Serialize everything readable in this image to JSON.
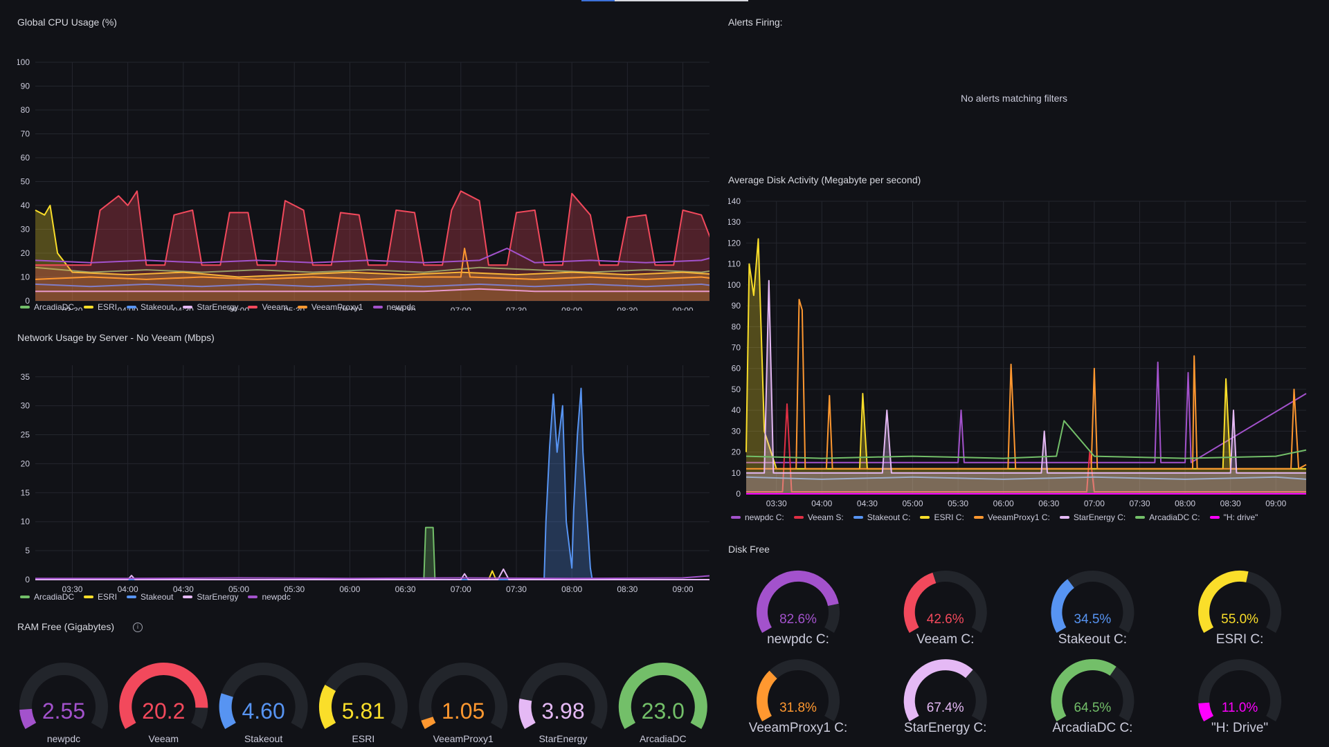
{
  "colors": {
    "green": "#73bf69",
    "yellow": "#fade2a",
    "blue": "#5794f2",
    "pink": "#e5b9f5",
    "red": "#f2495c",
    "orange": "#ff9830",
    "purple": "#a352cc",
    "darkred": "#e02f44",
    "magenta": "#ff00ff",
    "grid": "#24262e",
    "track": "#22252b"
  },
  "cpu_panel": {
    "title": "Global CPU Usage (%)",
    "legend": [
      "ArcadiaDC",
      "ESRI",
      "Stakeout",
      "StarEnergy",
      "Veeam",
      "VeeamProxy1",
      "newpdc"
    ]
  },
  "alerts_panel": {
    "title": "Alerts Firing:",
    "empty_text": "No alerts matching filters"
  },
  "network_panel": {
    "title": "Network Usage by Server - No Veeam (Mbps)",
    "legend": [
      "ArcadiaDC",
      "ESRI",
      "Stakeout",
      "StarEnergy",
      "newpdc"
    ]
  },
  "disk_activity_panel": {
    "title": "Average Disk Activity (Megabyte per second)",
    "legend": [
      "newpdc C:",
      "Veeam S:",
      "Stakeout C:",
      "ESRI C:",
      "VeeamProxy1 C:",
      "StarEnergy C:",
      "ArcadiaDC C:",
      "\"H: drive\""
    ]
  },
  "ram_panel": {
    "title": "RAM Free (Gigabytes)",
    "info_icon": "info-circle-icon",
    "gauges": [
      {
        "label": "newpdc",
        "value": "2.55",
        "fraction": 0.11,
        "color": "#a352cc"
      },
      {
        "label": "Veeam",
        "value": "20.2",
        "fraction": 0.88,
        "color": "#f2495c"
      },
      {
        "label": "Stakeout",
        "value": "4.60",
        "fraction": 0.2,
        "color": "#5794f2"
      },
      {
        "label": "ESRI",
        "value": "5.81",
        "fraction": 0.25,
        "color": "#fade2a"
      },
      {
        "label": "VeeamProxy1",
        "value": "1.05",
        "fraction": 0.05,
        "color": "#ff9830"
      },
      {
        "label": "StarEnergy",
        "value": "3.98",
        "fraction": 0.17,
        "color": "#e5b9f5"
      },
      {
        "label": "ArcadiaDC",
        "value": "23.0",
        "fraction": 1.0,
        "color": "#73bf69"
      }
    ]
  },
  "disk_free_panel": {
    "title": "Disk Free",
    "gauges": [
      {
        "label": "newpdc C:",
        "value": "82.6%",
        "fraction": 0.826,
        "color": "#a352cc"
      },
      {
        "label": "Veeam C:",
        "value": "42.6%",
        "fraction": 0.426,
        "color": "#f2495c"
      },
      {
        "label": "Stakeout C:",
        "value": "34.5%",
        "fraction": 0.345,
        "color": "#5794f2"
      },
      {
        "label": "ESRI C:",
        "value": "55.0%",
        "fraction": 0.55,
        "color": "#fade2a"
      },
      {
        "label": "VeeamProxy1 C:",
        "value": "31.8%",
        "fraction": 0.318,
        "color": "#ff9830"
      },
      {
        "label": "StarEnergy C:",
        "value": "67.4%",
        "fraction": 0.674,
        "color": "#e5b9f5"
      },
      {
        "label": "ArcadiaDC C:",
        "value": "64.5%",
        "fraction": 0.645,
        "color": "#73bf69"
      },
      {
        "label": "\"H: Drive\"",
        "value": "11.0%",
        "fraction": 0.11,
        "color": "#ff00ff"
      }
    ]
  },
  "chart_data": [
    {
      "type": "line",
      "title": "Global CPU Usage (%)",
      "ylim": [
        0,
        100
      ],
      "yticks": [
        "0",
        "10",
        "20",
        "30",
        "40",
        "50",
        "60",
        "70",
        "80",
        "90",
        "100"
      ],
      "xlim": [
        "03:10",
        "09:20"
      ],
      "xticks": [
        "03:30",
        "04:00",
        "04:30",
        "05:00",
        "05:30",
        "06:00",
        "06:30",
        "07:00",
        "07:30",
        "08:00",
        "08:30",
        "09:00"
      ],
      "grid": true,
      "legend_position": "bottom-left",
      "series": [
        {
          "name": "ArcadiaDC",
          "color": "#73bf69",
          "fill": false,
          "x": [
            "03:10",
            "03:40",
            "04:10",
            "04:40",
            "05:10",
            "05:40",
            "06:10",
            "06:40",
            "07:10",
            "07:40",
            "08:10",
            "08:40",
            "09:10",
            "09:20"
          ],
          "y": [
            14,
            12,
            13,
            12,
            13,
            12,
            13,
            12,
            14,
            13,
            12,
            13,
            12,
            13
          ]
        },
        {
          "name": "ESRI",
          "color": "#fade2a",
          "fill": true,
          "x": [
            "03:10",
            "03:15",
            "03:18",
            "03:22",
            "03:30",
            "04:00",
            "04:30",
            "05:00",
            "05:30",
            "06:00",
            "06:30",
            "07:00",
            "07:30",
            "08:00",
            "08:30",
            "09:00",
            "09:20"
          ],
          "y": [
            38,
            36,
            40,
            20,
            12,
            11,
            12,
            10,
            11,
            12,
            11,
            12,
            11,
            12,
            11,
            12,
            11
          ]
        },
        {
          "name": "Stakeout",
          "color": "#5794f2",
          "fill": false,
          "x": [
            "03:10",
            "03:40",
            "04:10",
            "04:40",
            "05:10",
            "05:40",
            "06:10",
            "06:40",
            "07:10",
            "07:40",
            "08:10",
            "08:40",
            "09:10",
            "09:20"
          ],
          "y": [
            7,
            6,
            7,
            6,
            7,
            6,
            7,
            6,
            7,
            6,
            7,
            6,
            7,
            6
          ]
        },
        {
          "name": "StarEnergy",
          "color": "#e5b9f5",
          "fill": false,
          "x": [
            "03:10",
            "03:40",
            "04:10",
            "04:40",
            "05:10",
            "05:40",
            "06:10",
            "06:40",
            "07:10",
            "07:40",
            "08:10",
            "08:40",
            "09:10",
            "09:20"
          ],
          "y": [
            4,
            4,
            4,
            4,
            4,
            4,
            4,
            4,
            5,
            4,
            4,
            4,
            4,
            4
          ]
        },
        {
          "name": "Veeam",
          "color": "#f2495c",
          "fill": true,
          "x": [
            "03:10",
            "03:40",
            "03:45",
            "03:55",
            "04:00",
            "04:05",
            "04:10",
            "04:20",
            "04:25",
            "04:35",
            "04:40",
            "04:50",
            "04:55",
            "05:05",
            "05:10",
            "05:20",
            "05:25",
            "05:35",
            "05:40",
            "05:50",
            "05:55",
            "06:05",
            "06:10",
            "06:20",
            "06:25",
            "06:35",
            "06:40",
            "06:50",
            "06:55",
            "07:00",
            "07:10",
            "07:15",
            "07:25",
            "07:30",
            "07:40",
            "07:45",
            "07:55",
            "08:00",
            "08:10",
            "08:15",
            "08:25",
            "08:30",
            "08:40",
            "08:45",
            "08:55",
            "09:00",
            "09:10",
            "09:20"
          ],
          "y": [
            15,
            15,
            38,
            44,
            40,
            46,
            15,
            15,
            36,
            38,
            15,
            15,
            37,
            37,
            15,
            15,
            42,
            38,
            15,
            15,
            37,
            36,
            15,
            15,
            38,
            37,
            15,
            15,
            38,
            46,
            42,
            15,
            15,
            37,
            38,
            15,
            15,
            45,
            36,
            15,
            15,
            35,
            36,
            15,
            15,
            38,
            36,
            16
          ]
        },
        {
          "name": "VeeamProxy1",
          "color": "#ff9830",
          "fill": false,
          "x": [
            "03:10",
            "03:40",
            "04:10",
            "04:40",
            "05:10",
            "05:40",
            "06:10",
            "06:40",
            "07:00",
            "07:02",
            "07:05",
            "07:40",
            "08:10",
            "08:40",
            "09:10",
            "09:20"
          ],
          "y": [
            9,
            10,
            9,
            10,
            9,
            10,
            9,
            10,
            10,
            22,
            10,
            9,
            10,
            9,
            10,
            9
          ]
        },
        {
          "name": "newpdc",
          "color": "#a352cc",
          "fill": false,
          "x": [
            "03:10",
            "03:40",
            "04:10",
            "04:40",
            "05:10",
            "05:40",
            "06:10",
            "06:40",
            "07:10",
            "07:25",
            "07:40",
            "08:10",
            "08:40",
            "09:10",
            "09:20"
          ],
          "y": [
            17,
            16,
            17,
            16,
            17,
            16,
            17,
            16,
            17,
            22,
            16,
            17,
            16,
            17,
            19
          ]
        }
      ]
    },
    {
      "type": "line",
      "title": "Network Usage by Server - No Veeam (Mbps)",
      "ylim": [
        0,
        37
      ],
      "yticks": [
        "0",
        "5",
        "10",
        "15",
        "20",
        "25",
        "30",
        "35"
      ],
      "xlim": [
        "03:10",
        "09:20"
      ],
      "xticks": [
        "03:30",
        "04:00",
        "04:30",
        "05:00",
        "05:30",
        "06:00",
        "06:30",
        "07:00",
        "07:30",
        "08:00",
        "08:30",
        "09:00"
      ],
      "grid": true,
      "legend_position": "bottom-left",
      "series": [
        {
          "name": "ArcadiaDC",
          "color": "#73bf69",
          "fill": true,
          "x": [
            "03:10",
            "06:40",
            "06:41",
            "06:45",
            "06:46",
            "09:20"
          ],
          "y": [
            0,
            0,
            9,
            9,
            0,
            0
          ]
        },
        {
          "name": "ESRI",
          "color": "#fade2a",
          "fill": false,
          "x": [
            "03:10",
            "07:15",
            "07:17",
            "07:19",
            "09:20"
          ],
          "y": [
            0,
            0,
            1.5,
            0,
            0
          ]
        },
        {
          "name": "Stakeout",
          "color": "#5794f2",
          "fill": true,
          "x": [
            "03:10",
            "07:45",
            "07:46",
            "07:48",
            "07:50",
            "07:52",
            "07:55",
            "07:57",
            "08:00",
            "08:01",
            "08:03",
            "08:05",
            "08:06",
            "08:08",
            "08:10",
            "08:11",
            "09:20"
          ],
          "y": [
            0,
            0,
            10,
            23,
            32,
            22,
            30,
            10,
            2,
            12,
            25,
            33,
            22,
            12,
            2,
            0,
            0
          ]
        },
        {
          "name": "StarEnergy",
          "color": "#e5b9f5",
          "fill": false,
          "x": [
            "03:10",
            "04:00",
            "04:02",
            "04:04",
            "07:00",
            "07:02",
            "07:04",
            "07:20",
            "07:23",
            "07:26",
            "09:20"
          ],
          "y": [
            0,
            0,
            0.7,
            0,
            0,
            1,
            0,
            0,
            1.8,
            0,
            0
          ]
        },
        {
          "name": "newpdc",
          "color": "#a352cc",
          "fill": false,
          "x": [
            "03:10",
            "04:00",
            "05:00",
            "06:00",
            "07:00",
            "08:00",
            "09:00",
            "09:20"
          ],
          "y": [
            0.2,
            0.2,
            0.3,
            0.2,
            0.3,
            0.2,
            0.3,
            0.8
          ]
        }
      ]
    },
    {
      "type": "line",
      "title": "Average Disk Activity (Megabyte per second)",
      "ylim": [
        0,
        140
      ],
      "yticks": [
        "0",
        "10",
        "20",
        "30",
        "40",
        "50",
        "60",
        "70",
        "80",
        "90",
        "100",
        "110",
        "120",
        "130",
        "140"
      ],
      "xlim": [
        "03:10",
        "09:20"
      ],
      "xticks": [
        "03:30",
        "04:00",
        "04:30",
        "05:00",
        "05:30",
        "06:00",
        "06:30",
        "07:00",
        "07:30",
        "08:00",
        "08:30",
        "09:00"
      ],
      "grid": true,
      "legend_position": "bottom-left",
      "series": [
        {
          "name": "newpdc C:",
          "color": "#a352cc",
          "fill": false,
          "x": [
            "03:10",
            "05:30",
            "05:32",
            "05:34",
            "07:40",
            "07:42",
            "07:44",
            "08:00",
            "08:02",
            "08:04",
            "09:20"
          ],
          "y": [
            15,
            15,
            40,
            15,
            15,
            63,
            15,
            15,
            58,
            15,
            48
          ]
        },
        {
          "name": "Veeam S:",
          "color": "#e02f44",
          "fill": false,
          "x": [
            "03:10",
            "03:34",
            "03:37",
            "03:40",
            "06:55",
            "06:57",
            "07:00",
            "09:20"
          ],
          "y": [
            1,
            1,
            43,
            1,
            1,
            20,
            1,
            1
          ]
        },
        {
          "name": "Stakeout C:",
          "color": "#5794f2",
          "fill": false,
          "x": [
            "03:10",
            "04:00",
            "05:00",
            "06:00",
            "07:00",
            "08:00",
            "09:00",
            "09:20"
          ],
          "y": [
            8,
            7,
            8,
            7,
            8,
            7,
            8,
            7
          ]
        },
        {
          "name": "ESRI C:",
          "color": "#fade2a",
          "fill": true,
          "x": [
            "03:10",
            "03:12",
            "03:15",
            "03:18",
            "03:22",
            "03:30",
            "04:25",
            "04:27",
            "04:30",
            "08:25",
            "08:27",
            "08:30",
            "09:20"
          ],
          "y": [
            20,
            110,
            95,
            122,
            30,
            12,
            12,
            48,
            12,
            12,
            55,
            12,
            12
          ]
        },
        {
          "name": "VeeamProxy1 C:",
          "color": "#ff9830",
          "fill": false,
          "x": [
            "03:10",
            "03:43",
            "03:45",
            "03:47",
            "03:49",
            "04:03",
            "04:05",
            "04:07",
            "06:03",
            "06:05",
            "06:08",
            "06:58",
            "07:00",
            "07:02",
            "08:05",
            "08:06",
            "08:08",
            "09:10",
            "09:12",
            "09:15",
            "09:20"
          ],
          "y": [
            12,
            12,
            93,
            88,
            12,
            12,
            47,
            12,
            12,
            62,
            12,
            12,
            60,
            12,
            12,
            66,
            12,
            12,
            50,
            12,
            14
          ]
        },
        {
          "name": "StarEnergy C:",
          "color": "#e5b9f5",
          "fill": true,
          "x": [
            "03:10",
            "03:22",
            "03:25",
            "03:28",
            "04:40",
            "04:43",
            "04:46",
            "06:25",
            "06:27",
            "06:29",
            "08:30",
            "08:32",
            "08:34",
            "09:20"
          ],
          "y": [
            10,
            10,
            102,
            10,
            10,
            40,
            10,
            10,
            30,
            10,
            10,
            40,
            10,
            10
          ]
        },
        {
          "name": "ArcadiaDC C:",
          "color": "#73bf69",
          "fill": false,
          "x": [
            "03:10",
            "04:00",
            "05:00",
            "06:00",
            "06:35",
            "06:40",
            "07:00",
            "08:00",
            "09:00",
            "09:20"
          ],
          "y": [
            18,
            17,
            18,
            17,
            18,
            35,
            18,
            17,
            18,
            21
          ]
        },
        {
          "name": "\"H: drive\"",
          "color": "#ff00ff",
          "fill": false,
          "x": [
            "03:10",
            "09:20"
          ],
          "y": [
            0,
            0
          ]
        }
      ]
    }
  ]
}
